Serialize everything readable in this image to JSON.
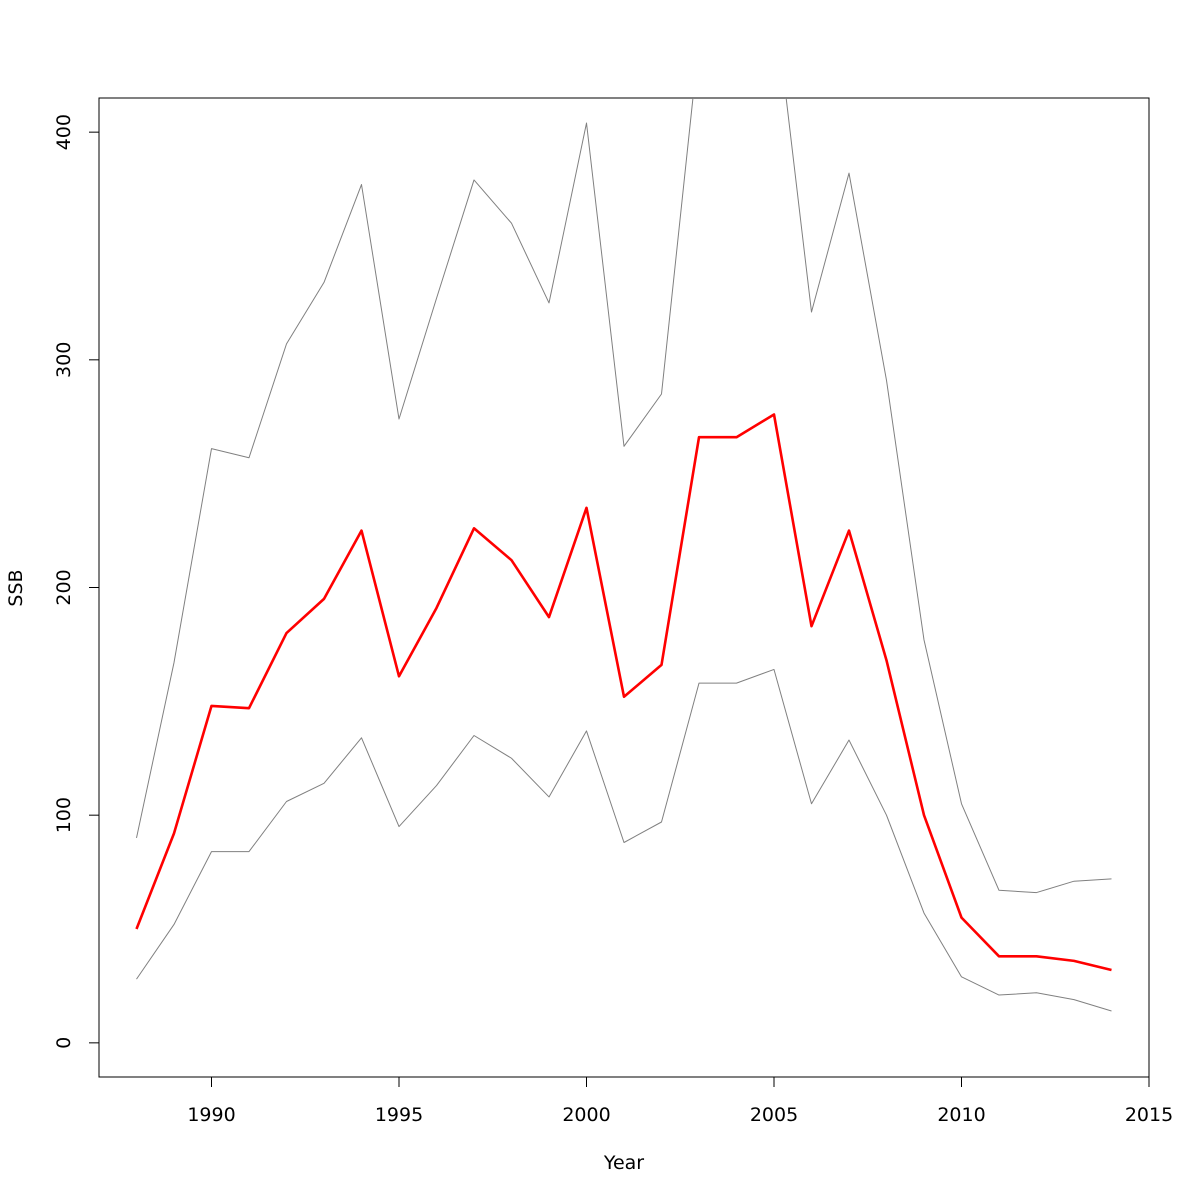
{
  "chart_data": {
    "type": "line",
    "title": "",
    "xlabel": "Year",
    "ylabel": "SSB",
    "xlim": [
      1987,
      2015
    ],
    "ylim": [
      -15,
      415
    ],
    "x_ticks": [
      1990,
      1995,
      2000,
      2005,
      2010,
      2015
    ],
    "y_ticks": [
      0,
      100,
      200,
      300,
      400
    ],
    "grid": false,
    "x": [
      1988,
      1989,
      1990,
      1991,
      1992,
      1993,
      1994,
      1995,
      1996,
      1997,
      1998,
      1999,
      2000,
      2001,
      2002,
      2003,
      2004,
      2005,
      2006,
      2007,
      2008,
      2009,
      2010,
      2011,
      2012,
      2013,
      2014
    ],
    "series": [
      {
        "role": "upper",
        "color": "#808080",
        "values": [
          90,
          167,
          261,
          257,
          307,
          334,
          377,
          274,
          327,
          379,
          360,
          325,
          404,
          262,
          285,
          440,
          445,
          460,
          321,
          382,
          291,
          177,
          105,
          67,
          66,
          71,
          72
        ]
      },
      {
        "role": "estimate",
        "color": "#ff0000",
        "values": [
          50,
          92,
          148,
          147,
          180,
          195,
          225,
          161,
          191,
          226,
          212,
          187,
          235,
          152,
          166,
          266,
          266,
          276,
          183,
          225,
          168,
          100,
          55,
          38,
          38,
          36,
          32
        ]
      },
      {
        "role": "lower",
        "color": "#808080",
        "values": [
          28,
          52,
          84,
          84,
          106,
          114,
          134,
          95,
          113,
          135,
          125,
          108,
          137,
          88,
          97,
          158,
          158,
          164,
          105,
          133,
          100,
          57,
          29,
          21,
          22,
          19,
          14
        ]
      }
    ]
  }
}
